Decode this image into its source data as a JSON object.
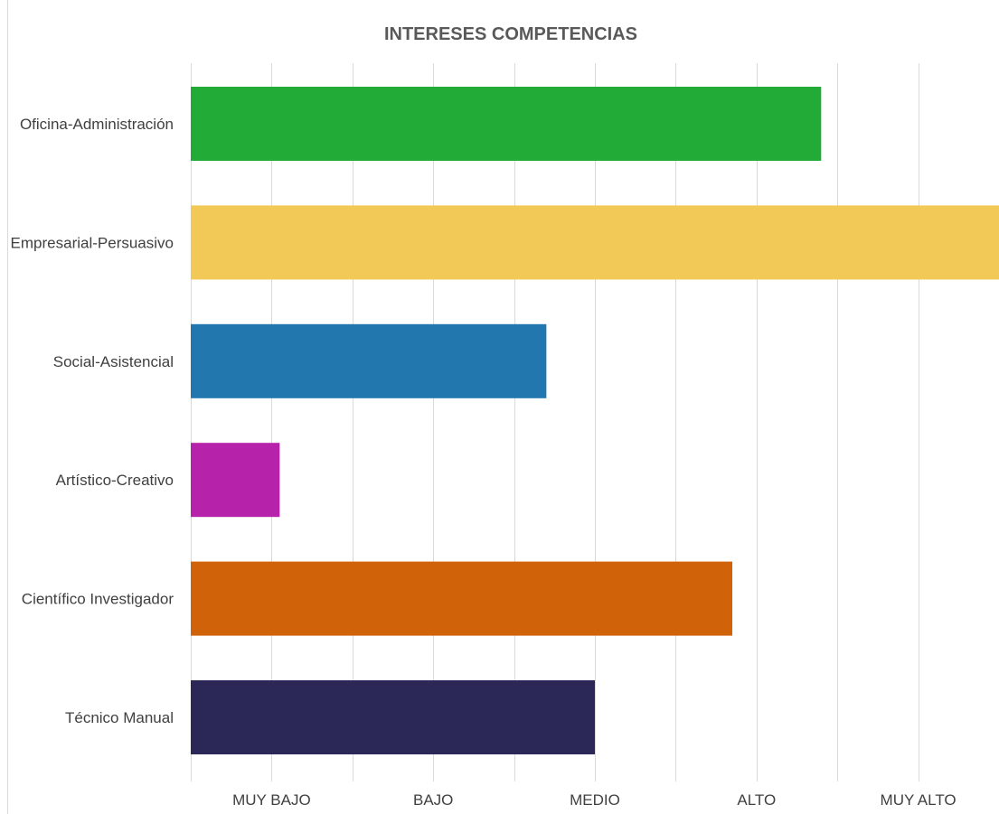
{
  "chart_data": {
    "type": "bar",
    "orientation": "horizontal",
    "title": "INTERESES COMPETENCIAS",
    "categories": [
      "Oficina-Administración",
      "Empresarial-Persuasivo",
      "Social-Asistencial",
      "Artístico-Creativo",
      "Científico Investigador",
      "Técnico Manual"
    ],
    "values": [
      3.9,
      5.0,
      2.2,
      0.55,
      3.35,
      2.5
    ],
    "colors": [
      "#22ab36",
      "#f2c957",
      "#2277af",
      "#b722aa",
      "#d06209",
      "#2b2756"
    ],
    "xlim": [
      0,
      5
    ],
    "xticks": [
      "MUY BAJO",
      "BAJO",
      "MEDIO",
      "ALTO",
      "MUY ALTO"
    ],
    "grid": true
  }
}
